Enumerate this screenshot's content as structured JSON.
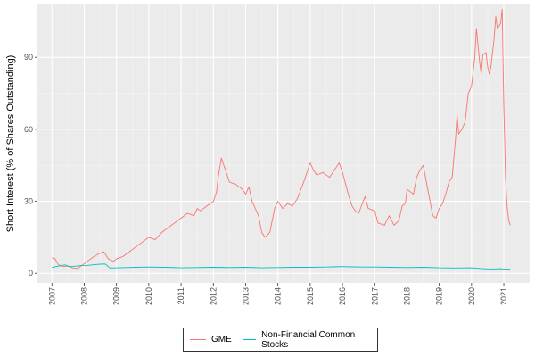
{
  "chart_data": {
    "type": "line",
    "title": "",
    "xlabel": "",
    "ylabel": "Short Interest (% of Shares Outstanding)",
    "xlim": [
      2006.55,
      2021.8
    ],
    "ylim": [
      -4,
      112
    ],
    "x_ticks": [
      "2007",
      "2008",
      "2009",
      "2010",
      "2011",
      "2012",
      "2013",
      "2014",
      "2015",
      "2016",
      "2017",
      "2018",
      "2019",
      "2020",
      "2021"
    ],
    "y_ticks": [
      0,
      30,
      60,
      90
    ],
    "grid": true,
    "legend_position": "bottom",
    "series": [
      {
        "name": "GME",
        "color": "#F8766D",
        "points": [
          [
            2007.0,
            6.5
          ],
          [
            2007.1,
            6.0
          ],
          [
            2007.2,
            3.5
          ],
          [
            2007.35,
            2.8
          ],
          [
            2007.5,
            3.0
          ],
          [
            2007.65,
            2.2
          ],
          [
            2007.8,
            2.0
          ],
          [
            2007.95,
            3.5
          ],
          [
            2008.1,
            5.0
          ],
          [
            2008.3,
            7.0
          ],
          [
            2008.5,
            8.5
          ],
          [
            2008.6,
            9.0
          ],
          [
            2008.75,
            6.0
          ],
          [
            2008.9,
            5.0
          ],
          [
            2009.0,
            6.0
          ],
          [
            2009.2,
            7.0
          ],
          [
            2009.4,
            9.0
          ],
          [
            2009.6,
            11.0
          ],
          [
            2009.8,
            13.0
          ],
          [
            2010.0,
            15.0
          ],
          [
            2010.2,
            14.0
          ],
          [
            2010.4,
            17.0
          ],
          [
            2010.6,
            19.0
          ],
          [
            2010.8,
            21.0
          ],
          [
            2011.0,
            23.0
          ],
          [
            2011.2,
            25.0
          ],
          [
            2011.4,
            24.0
          ],
          [
            2011.5,
            27.0
          ],
          [
            2011.6,
            26.0
          ],
          [
            2011.8,
            28.0
          ],
          [
            2012.0,
            30.0
          ],
          [
            2012.1,
            34.0
          ],
          [
            2012.15,
            40.0
          ],
          [
            2012.25,
            48.0
          ],
          [
            2012.35,
            44.0
          ],
          [
            2012.5,
            38.0
          ],
          [
            2012.7,
            37.0
          ],
          [
            2012.9,
            35.0
          ],
          [
            2013.0,
            33.0
          ],
          [
            2013.1,
            36.0
          ],
          [
            2013.2,
            30.0
          ],
          [
            2013.4,
            24.0
          ],
          [
            2013.5,
            17.0
          ],
          [
            2013.6,
            15.0
          ],
          [
            2013.75,
            17.0
          ],
          [
            2013.9,
            27.0
          ],
          [
            2014.0,
            30.0
          ],
          [
            2014.15,
            27.0
          ],
          [
            2014.3,
            29.0
          ],
          [
            2014.45,
            28.0
          ],
          [
            2014.6,
            31.0
          ],
          [
            2014.8,
            38.0
          ],
          [
            2015.0,
            46.0
          ],
          [
            2015.1,
            43.0
          ],
          [
            2015.2,
            41.0
          ],
          [
            2015.4,
            42.0
          ],
          [
            2015.6,
            40.0
          ],
          [
            2015.8,
            44.0
          ],
          [
            2015.9,
            46.0
          ],
          [
            2016.0,
            42.0
          ],
          [
            2016.2,
            32.0
          ],
          [
            2016.3,
            28.0
          ],
          [
            2016.4,
            26.0
          ],
          [
            2016.5,
            25.0
          ],
          [
            2016.7,
            32.0
          ],
          [
            2016.8,
            27.0
          ],
          [
            2017.0,
            26.0
          ],
          [
            2017.1,
            21.0
          ],
          [
            2017.3,
            20.0
          ],
          [
            2017.45,
            24.0
          ],
          [
            2017.6,
            20.0
          ],
          [
            2017.75,
            22.0
          ],
          [
            2017.85,
            28.0
          ],
          [
            2017.95,
            29.0
          ],
          [
            2018.0,
            35.0
          ],
          [
            2018.1,
            34.0
          ],
          [
            2018.2,
            33.0
          ],
          [
            2018.3,
            40.0
          ],
          [
            2018.4,
            43.0
          ],
          [
            2018.5,
            45.0
          ],
          [
            2018.6,
            38.0
          ],
          [
            2018.7,
            31.0
          ],
          [
            2018.8,
            24.0
          ],
          [
            2018.9,
            23.0
          ],
          [
            2019.0,
            27.0
          ],
          [
            2019.1,
            29.0
          ],
          [
            2019.2,
            33.0
          ],
          [
            2019.3,
            38.0
          ],
          [
            2019.4,
            40.0
          ],
          [
            2019.5,
            55.0
          ],
          [
            2019.55,
            66.0
          ],
          [
            2019.6,
            58.0
          ],
          [
            2019.7,
            60.0
          ],
          [
            2019.8,
            63.0
          ],
          [
            2019.9,
            75.0
          ],
          [
            2020.0,
            78.0
          ],
          [
            2020.1,
            90.0
          ],
          [
            2020.15,
            102.0
          ],
          [
            2020.2,
            95.0
          ],
          [
            2020.25,
            88.0
          ],
          [
            2020.3,
            83.0
          ],
          [
            2020.35,
            91.0
          ],
          [
            2020.45,
            92.0
          ],
          [
            2020.5,
            86.0
          ],
          [
            2020.55,
            83.0
          ],
          [
            2020.6,
            86.0
          ],
          [
            2020.7,
            98.0
          ],
          [
            2020.75,
            107.0
          ],
          [
            2020.8,
            102.0
          ],
          [
            2020.9,
            104.0
          ],
          [
            2020.95,
            110.0
          ],
          [
            2021.0,
            70.0
          ],
          [
            2021.05,
            40.0
          ],
          [
            2021.1,
            28.0
          ],
          [
            2021.15,
            22.0
          ],
          [
            2021.2,
            20.0
          ]
        ]
      },
      {
        "name": "Non-Financial Common Stocks",
        "color": "#00BFC4",
        "points": [
          [
            2007.0,
            2.5
          ],
          [
            2007.2,
            3.0
          ],
          [
            2007.4,
            3.5
          ],
          [
            2007.55,
            2.8
          ],
          [
            2007.7,
            2.9
          ],
          [
            2007.9,
            3.2
          ],
          [
            2008.1,
            3.3
          ],
          [
            2008.3,
            3.6
          ],
          [
            2008.5,
            3.8
          ],
          [
            2008.65,
            3.9
          ],
          [
            2008.8,
            2.2
          ],
          [
            2009.0,
            2.3
          ],
          [
            2009.3,
            2.4
          ],
          [
            2009.6,
            2.5
          ],
          [
            2010.0,
            2.6
          ],
          [
            2010.5,
            2.5
          ],
          [
            2011.0,
            2.3
          ],
          [
            2011.5,
            2.4
          ],
          [
            2012.0,
            2.5
          ],
          [
            2012.5,
            2.4
          ],
          [
            2013.0,
            2.5
          ],
          [
            2013.5,
            2.3
          ],
          [
            2014.0,
            2.4
          ],
          [
            2014.5,
            2.5
          ],
          [
            2015.0,
            2.5
          ],
          [
            2015.5,
            2.6
          ],
          [
            2016.0,
            2.8
          ],
          [
            2016.3,
            2.7
          ],
          [
            2016.6,
            2.6
          ],
          [
            2017.0,
            2.6
          ],
          [
            2017.5,
            2.5
          ],
          [
            2018.0,
            2.4
          ],
          [
            2018.5,
            2.5
          ],
          [
            2019.0,
            2.3
          ],
          [
            2019.5,
            2.2
          ],
          [
            2020.0,
            2.3
          ],
          [
            2020.3,
            2.0
          ],
          [
            2020.6,
            1.8
          ],
          [
            2020.9,
            1.9
          ],
          [
            2021.0,
            1.8
          ],
          [
            2021.2,
            1.7
          ]
        ]
      }
    ]
  }
}
